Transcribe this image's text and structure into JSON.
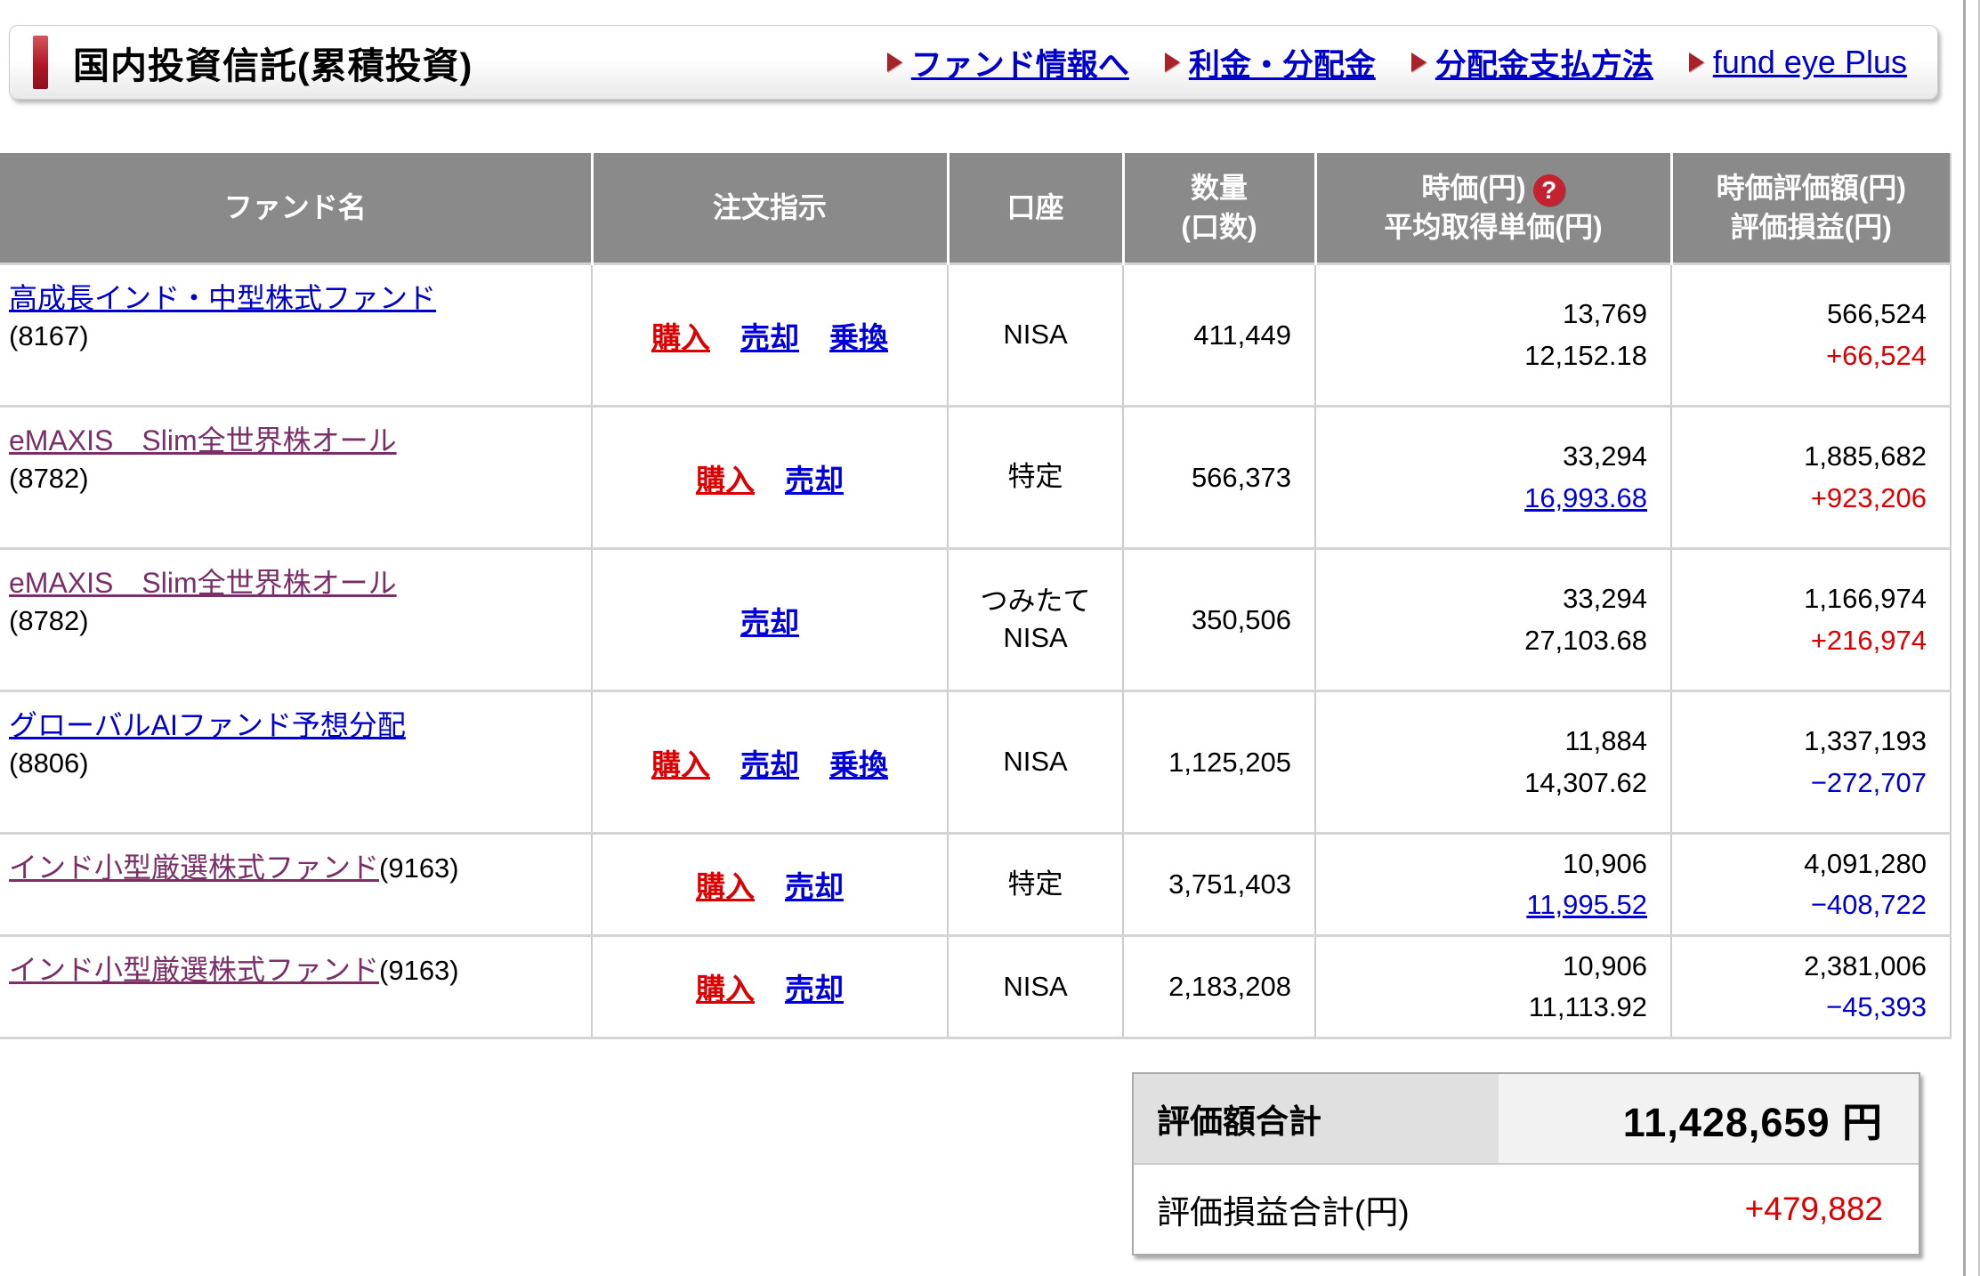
{
  "header": {
    "title": "国内投資信託(累積投資)",
    "links": [
      {
        "label": "ファンド情報へ"
      },
      {
        "label": "利金・分配金"
      },
      {
        "label": "分配金支払方法"
      },
      {
        "label": "fund eye Plus"
      }
    ]
  },
  "table": {
    "columns": {
      "fund": "ファンド名",
      "order": "注文指示",
      "account": "口座",
      "qty_l1": "数量",
      "qty_l2": "(口数)",
      "price_l1": "時価(円)",
      "price_l2": "平均取得単価(円)",
      "value_l1": "時価評価額(円)",
      "value_l2": "評価損益(円)",
      "help_icon": "?"
    },
    "rows": [
      {
        "name": "高成長インド・中型株式ファンド",
        "code": "(8167)",
        "actions": [
          "購入",
          "売却",
          "乗換"
        ],
        "account": "NISA",
        "qty": "411,449",
        "price": "13,769",
        "avg_price": "12,152.18",
        "value": "566,524",
        "pl": "+66,524"
      },
      {
        "name": "eMAXIS　Slim全世界株オール",
        "code": "(8782)",
        "actions": [
          "購入",
          "売却"
        ],
        "account": "特定",
        "qty": "566,373",
        "price": "33,294",
        "avg_price": "16,993.68",
        "value": "1,885,682",
        "pl": "+923,206"
      },
      {
        "name": "eMAXIS　Slim全世界株オール",
        "code": "(8782)",
        "actions": [
          "売却"
        ],
        "account": "つみたて\nNISA",
        "qty": "350,506",
        "price": "33,294",
        "avg_price": "27,103.68",
        "value": "1,166,974",
        "pl": "+216,974"
      },
      {
        "name": "グローバルAIファンド予想分配",
        "code": "(8806)",
        "actions": [
          "購入",
          "売却",
          "乗換"
        ],
        "account": "NISA",
        "qty": "1,125,205",
        "price": "11,884",
        "avg_price": "14,307.62",
        "value": "1,337,193",
        "pl": "−272,707"
      },
      {
        "name": "インド小型厳選株式ファンド",
        "code": "(9163)",
        "actions": [
          "購入",
          "売却"
        ],
        "account": "特定",
        "qty": "3,751,403",
        "price": "10,906",
        "avg_price": "11,995.52",
        "value": "4,091,280",
        "pl": "−408,722"
      },
      {
        "name": "インド小型厳選株式ファンド",
        "code": "(9163)",
        "actions": [
          "購入",
          "売却"
        ],
        "account": "NISA",
        "qty": "2,183,208",
        "price": "10,906",
        "avg_price": "11,113.92",
        "value": "2,381,006",
        "pl": "−45,393"
      }
    ]
  },
  "summary": {
    "total_label": "評価額合計",
    "total_value": "11,428,659 円",
    "pl_label": "評価損益合計(円)",
    "pl_value": "+479,882"
  },
  "colors": {
    "header_bg": "#8a8a8a",
    "link_blue": "#0000cc",
    "visited_purple": "#7b2f68",
    "buy_red": "#dd0000",
    "positive_red": "#dd0000",
    "negative_blue": "#0000cc",
    "accent_red_bar": "#b01724"
  }
}
